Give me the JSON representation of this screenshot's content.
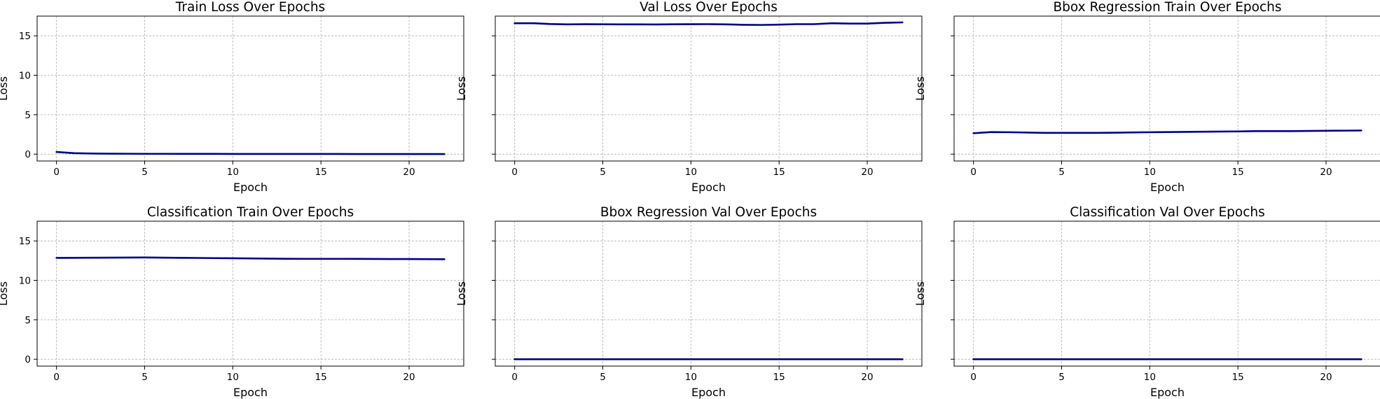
{
  "figure": {
    "line_color": "#00008b",
    "grid": true
  },
  "chart_data": [
    {
      "type": "line",
      "title": "Train Loss Over Epochs",
      "xlabel": "Epoch",
      "ylabel": "Loss",
      "xlim": [
        -1.1,
        23.1
      ],
      "ylim": [
        -0.87,
        17.5
      ],
      "xticks": [
        "0",
        "5",
        "10",
        "15",
        "20"
      ],
      "yticks": [
        "0",
        "5",
        "10",
        "15"
      ],
      "y_tick_labels_shown": true,
      "x": [
        0,
        1,
        2,
        3,
        4,
        5,
        6,
        7,
        8,
        9,
        10,
        11,
        12,
        13,
        14,
        15,
        16,
        17,
        18,
        19,
        20,
        21,
        22
      ],
      "series": [
        {
          "values": [
            0.28,
            0.12,
            0.08,
            0.06,
            0.05,
            0.04,
            0.04,
            0.03,
            0.03,
            0.03,
            0.02,
            0.02,
            0.02,
            0.02,
            0.02,
            0.02,
            0.02,
            0.01,
            0.01,
            0.01,
            0.01,
            0.01,
            0.01
          ]
        }
      ]
    },
    {
      "type": "line",
      "title": "Val Loss Over Epochs",
      "xlabel": "Epoch",
      "ylabel": "Loss",
      "xlim": [
        -1.1,
        23.1
      ],
      "ylim": [
        -0.87,
        17.5
      ],
      "xticks": [
        "0",
        "5",
        "10",
        "15",
        "20"
      ],
      "yticks": [
        "0",
        "5",
        "10",
        "15"
      ],
      "y_tick_labels_shown": false,
      "x": [
        0,
        1,
        2,
        3,
        4,
        5,
        6,
        7,
        8,
        9,
        10,
        11,
        12,
        13,
        14,
        15,
        16,
        17,
        18,
        19,
        20,
        21,
        22
      ],
      "series": [
        {
          "values": [
            16.6,
            16.6,
            16.5,
            16.45,
            16.47,
            16.46,
            16.45,
            16.45,
            16.44,
            16.46,
            16.47,
            16.48,
            16.45,
            16.4,
            16.38,
            16.42,
            16.48,
            16.48,
            16.6,
            16.55,
            16.55,
            16.65,
            16.7
          ]
        }
      ]
    },
    {
      "type": "line",
      "title": "Bbox Regression Train Over Epochs",
      "xlabel": "Epoch",
      "ylabel": "Loss",
      "xlim": [
        -1.1,
        23.1
      ],
      "ylim": [
        -0.87,
        17.5
      ],
      "xticks": [
        "0",
        "5",
        "10",
        "15",
        "20"
      ],
      "yticks": [
        "0",
        "5",
        "10",
        "15"
      ],
      "y_tick_labels_shown": false,
      "x": [
        0,
        1,
        2,
        3,
        4,
        5,
        6,
        7,
        8,
        9,
        10,
        11,
        12,
        13,
        14,
        15,
        16,
        17,
        18,
        19,
        20,
        21,
        22
      ],
      "series": [
        {
          "values": [
            2.65,
            2.8,
            2.78,
            2.74,
            2.7,
            2.7,
            2.7,
            2.7,
            2.72,
            2.75,
            2.78,
            2.8,
            2.82,
            2.84,
            2.86,
            2.88,
            2.92,
            2.92,
            2.92,
            2.94,
            2.96,
            2.98,
            3.0
          ]
        }
      ]
    },
    {
      "type": "line",
      "title": "Classification Train Over Epochs",
      "xlabel": "Epoch",
      "ylabel": "Loss",
      "xlim": [
        -1.1,
        23.1
      ],
      "ylim": [
        -0.87,
        17.5
      ],
      "xticks": [
        "0",
        "5",
        "10",
        "15",
        "20"
      ],
      "yticks": [
        "0",
        "5",
        "10",
        "15"
      ],
      "y_tick_labels_shown": true,
      "x": [
        0,
        1,
        2,
        3,
        4,
        5,
        6,
        7,
        8,
        9,
        10,
        11,
        12,
        13,
        14,
        15,
        16,
        17,
        18,
        19,
        20,
        21,
        22
      ],
      "series": [
        {
          "values": [
            12.85,
            12.86,
            12.87,
            12.88,
            12.89,
            12.9,
            12.88,
            12.86,
            12.84,
            12.82,
            12.8,
            12.78,
            12.76,
            12.74,
            12.73,
            12.73,
            12.73,
            12.72,
            12.71,
            12.7,
            12.7,
            12.69,
            12.68
          ]
        }
      ]
    },
    {
      "type": "line",
      "title": "Bbox Regression Val Over Epochs",
      "xlabel": "Epoch",
      "ylabel": "Loss",
      "xlim": [
        -1.1,
        23.1
      ],
      "ylim": [
        -0.87,
        17.5
      ],
      "xticks": [
        "0",
        "5",
        "10",
        "15",
        "20"
      ],
      "yticks": [
        "0",
        "5",
        "10",
        "15"
      ],
      "y_tick_labels_shown": false,
      "x": [
        0,
        1,
        2,
        3,
        4,
        5,
        6,
        7,
        8,
        9,
        10,
        11,
        12,
        13,
        14,
        15,
        16,
        17,
        18,
        19,
        20,
        21,
        22
      ],
      "series": [
        {
          "values": [
            0,
            0,
            0,
            0,
            0,
            0,
            0,
            0,
            0,
            0,
            0,
            0,
            0,
            0,
            0,
            0,
            0,
            0,
            0,
            0,
            0,
            0,
            0
          ]
        }
      ]
    },
    {
      "type": "line",
      "title": "Classification Val Over Epochs",
      "xlabel": "Epoch",
      "ylabel": "Loss",
      "xlim": [
        -1.1,
        23.1
      ],
      "ylim": [
        -0.87,
        17.5
      ],
      "xticks": [
        "0",
        "5",
        "10",
        "15",
        "20"
      ],
      "yticks": [
        "0",
        "5",
        "10",
        "15"
      ],
      "y_tick_labels_shown": false,
      "x": [
        0,
        1,
        2,
        3,
        4,
        5,
        6,
        7,
        8,
        9,
        10,
        11,
        12,
        13,
        14,
        15,
        16,
        17,
        18,
        19,
        20,
        21,
        22
      ],
      "series": [
        {
          "values": [
            0,
            0,
            0,
            0,
            0,
            0,
            0,
            0,
            0,
            0,
            0,
            0,
            0,
            0,
            0,
            0,
            0,
            0,
            0,
            0,
            0,
            0,
            0
          ]
        }
      ]
    }
  ]
}
